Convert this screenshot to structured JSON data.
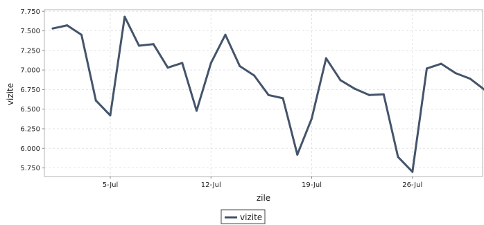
{
  "chart_data": {
    "type": "line",
    "title": "",
    "xlabel": "zile",
    "ylabel": "vizite",
    "x_tick_labels": [
      "5-Jul",
      "12-Jul",
      "19-Jul",
      "26-Jul"
    ],
    "x_tick_index": [
      4,
      11,
      18,
      25
    ],
    "y_ticks": [
      "5.750",
      "6.000",
      "6.250",
      "6.500",
      "6.750",
      "7.000",
      "7.250",
      "7.500",
      "7.750"
    ],
    "ylim": [
      5.64,
      7.77
    ],
    "grid": true,
    "legend_position": "bottom-center",
    "series": [
      {
        "name": "vizite",
        "color": "#44546a",
        "values": [
          7.53,
          7.57,
          7.45,
          6.61,
          6.42,
          7.68,
          7.31,
          7.33,
          7.03,
          7.09,
          6.48,
          7.09,
          7.45,
          7.05,
          6.93,
          6.68,
          6.64,
          5.92,
          6.38,
          7.15,
          6.87,
          6.76,
          6.68,
          6.69,
          5.89,
          5.7,
          7.02,
          7.08,
          6.96,
          6.89,
          6.75
        ]
      }
    ]
  }
}
